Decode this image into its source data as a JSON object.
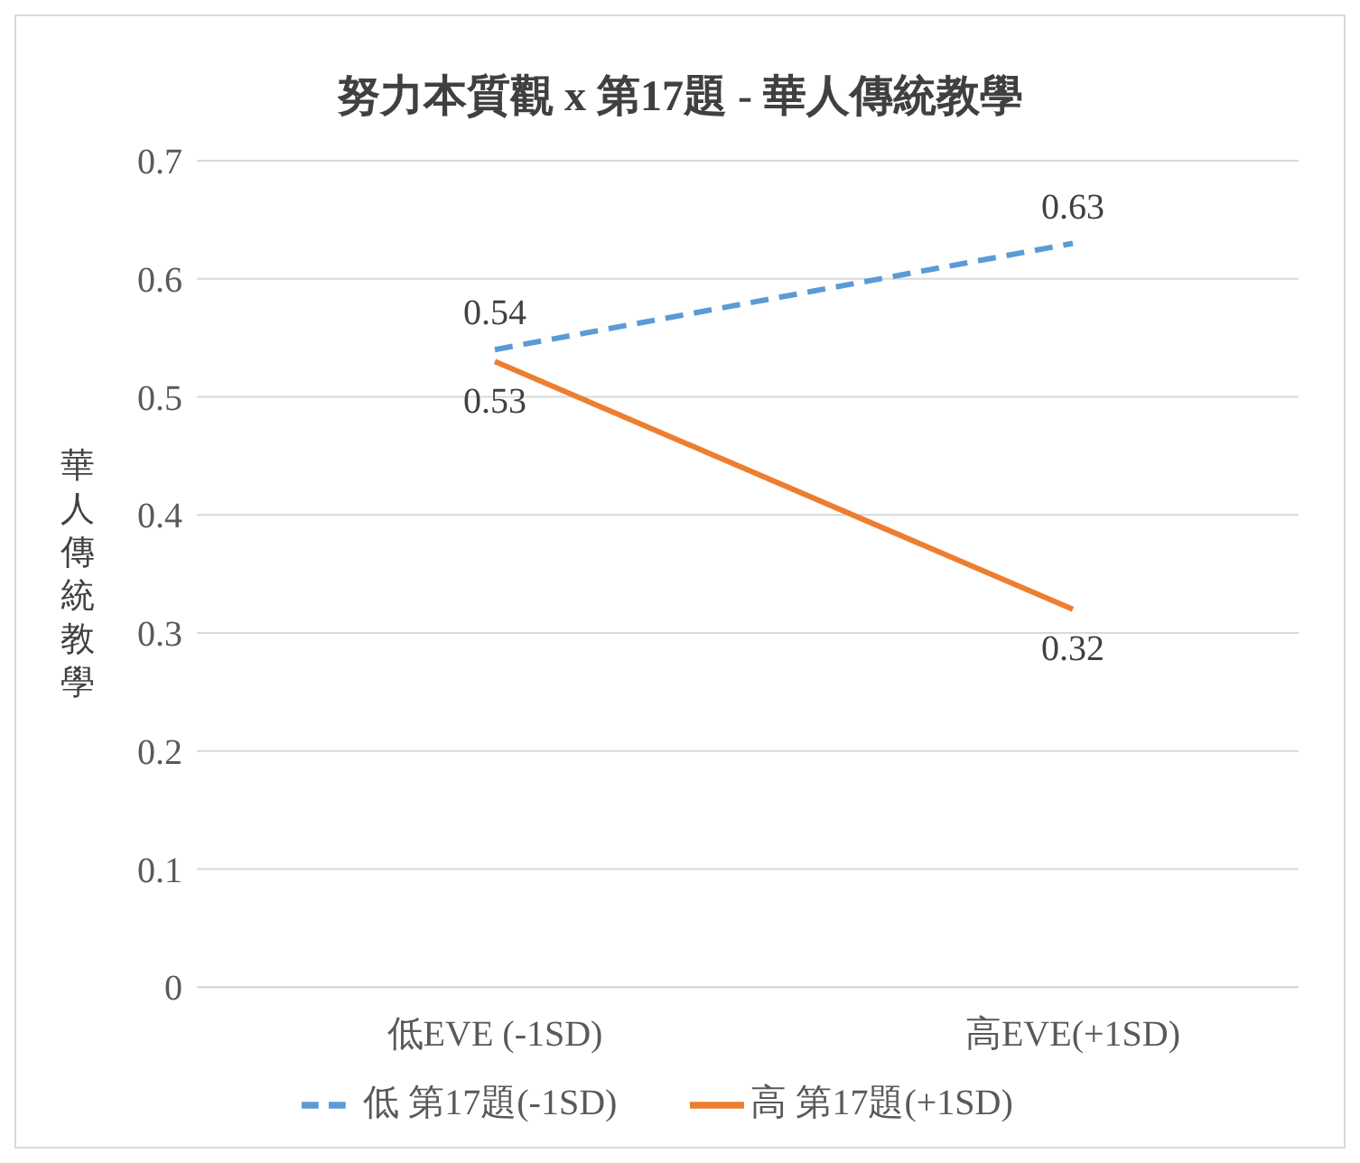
{
  "chart_data": {
    "type": "line",
    "title": "努力本質觀 x 第17題 - 華人傳統教學",
    "ylabel": "華人傳統教學",
    "categories": [
      "低EVE (-1SD)",
      "高EVE(+1SD)"
    ],
    "series": [
      {
        "name": "低 第17題(-1SD)",
        "color": "#5b9bd5",
        "values": [
          0.54,
          0.63
        ],
        "line_style": "dashed"
      },
      {
        "name": "高 第17題(+1SD)",
        "color": "#ed7d31",
        "values": [
          0.53,
          0.32
        ],
        "line_style": "solid"
      }
    ],
    "ylim": [
      0,
      0.7
    ],
    "yticks": [
      0,
      0.1,
      0.2,
      0.3,
      0.4,
      0.5,
      0.6,
      0.7
    ],
    "grid": "y",
    "legend": "bottom",
    "data_labels": true,
    "marker": "none"
  }
}
